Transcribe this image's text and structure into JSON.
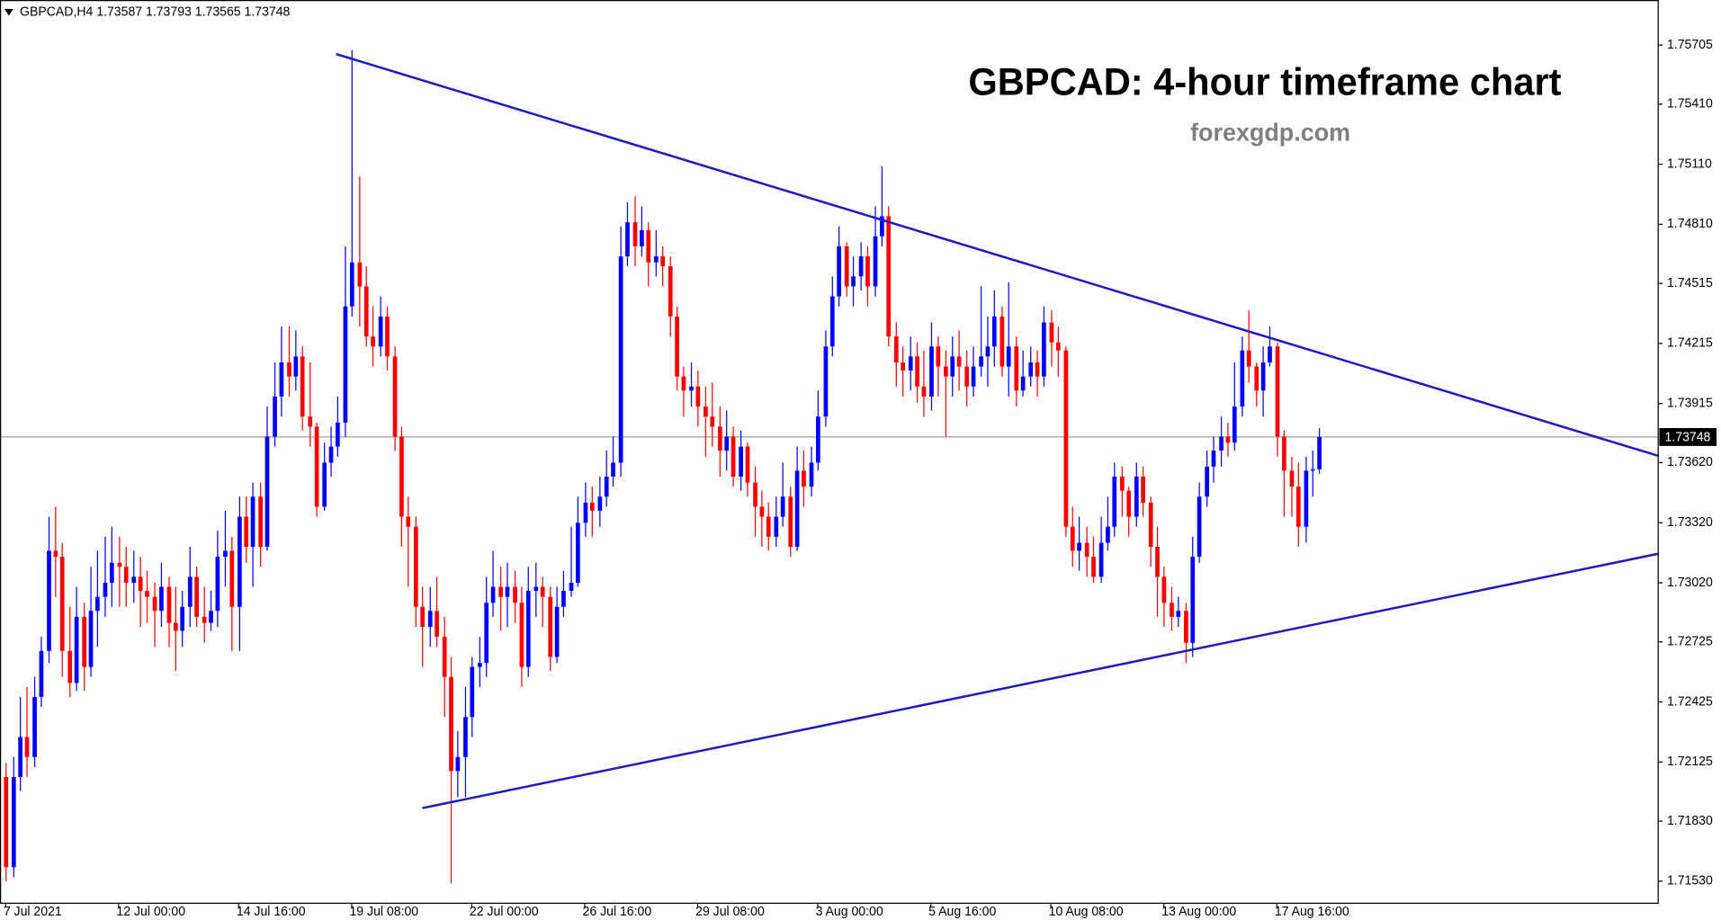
{
  "chart_data": {
    "type": "candlestick",
    "symbol": "GBPCAD,H4",
    "title": "GBPCAD: 4-hour timeframe chart",
    "subtitle": "forexgdp.com",
    "up_color": "#0000ff",
    "down_color": "#ff0000",
    "xlim": [
      -0.8,
      234.0
    ],
    "ylim": [
      1.7142,
      1.7593
    ],
    "xticks": [
      {
        "value": 0,
        "label": "7 Jul 2021"
      },
      {
        "value": 16,
        "label": "12 Jul 00:00"
      },
      {
        "value": 33,
        "label": "14 Jul 16:00"
      },
      {
        "value": 49,
        "label": "19 Jul 08:00"
      },
      {
        "value": 66,
        "label": "22 Jul 00:00"
      },
      {
        "value": 82,
        "label": "26 Jul 16:00"
      },
      {
        "value": 98,
        "label": "29 Jul 08:00"
      },
      {
        "value": 115,
        "label": "3 Aug 00:00"
      },
      {
        "value": 131,
        "label": "5 Aug 16:00"
      },
      {
        "value": 148,
        "label": "10 Aug 08:00"
      },
      {
        "value": 164,
        "label": "13 Aug 00:00"
      },
      {
        "value": 180,
        "label": "17 Aug 16:00"
      }
    ],
    "yticks": [
      1.75705,
      {
        "value": 1.7541,
        "label": "1.75410"
      },
      {
        "value": 1.7511,
        "label": "1.75110"
      },
      {
        "value": 1.7481,
        "label": "1.74810"
      },
      1.74515,
      1.74215,
      1.73915,
      {
        "value": 1.7362,
        "label": "1.73620"
      },
      {
        "value": 1.7332,
        "label": "1.73320"
      },
      {
        "value": 1.7302,
        "label": "1.73020"
      },
      1.72725,
      1.72425,
      1.72125,
      {
        "value": 1.7183,
        "label": "1.71830"
      },
      {
        "value": 1.7153,
        "label": "1.71530"
      }
    ],
    "trendlines": [
      {
        "x": [
          46.8,
          234.0
        ],
        "y": [
          1.7566,
          1.73654
        ],
        "color": "#1a1ac8"
      },
      {
        "x": [
          59.0,
          234.0
        ],
        "y": [
          1.71895,
          1.73165
        ],
        "color": "#1a1ac8"
      }
    ],
    "current_price_line_color": "#a0a0a0",
    "ohlc": [
      [
        1.7205,
        1.7212,
        1.7153,
        1.716
      ],
      [
        1.716,
        1.7215,
        1.7155,
        1.7205
      ],
      [
        1.7205,
        1.7245,
        1.7198,
        1.7225
      ],
      [
        1.7225,
        1.725,
        1.7205,
        1.7215
      ],
      [
        1.7215,
        1.7255,
        1.721,
        1.7245
      ],
      [
        1.7245,
        1.7275,
        1.724,
        1.7268
      ],
      [
        1.7268,
        1.7335,
        1.7262,
        1.7318
      ],
      [
        1.7318,
        1.734,
        1.7295,
        1.7315
      ],
      [
        1.7315,
        1.7322,
        1.7255,
        1.7268
      ],
      [
        1.7268,
        1.729,
        1.7245,
        1.7252
      ],
      [
        1.7252,
        1.73,
        1.7248,
        1.7285
      ],
      [
        1.7285,
        1.7292,
        1.7248,
        1.726
      ],
      [
        1.726,
        1.731,
        1.7255,
        1.7288
      ],
      [
        1.7288,
        1.7318,
        1.727,
        1.7295
      ],
      [
        1.7295,
        1.7325,
        1.7285,
        1.7302
      ],
      [
        1.7302,
        1.733,
        1.729,
        1.7312
      ],
      [
        1.7312,
        1.7325,
        1.729,
        1.731
      ],
      [
        1.731,
        1.732,
        1.729,
        1.7302
      ],
      [
        1.7302,
        1.7318,
        1.7292,
        1.7305
      ],
      [
        1.7305,
        1.7315,
        1.728,
        1.7298
      ],
      [
        1.7298,
        1.7308,
        1.7282,
        1.7295
      ],
      [
        1.7295,
        1.7302,
        1.727,
        1.7288
      ],
      [
        1.7288,
        1.7312,
        1.728,
        1.73
      ],
      [
        1.73,
        1.7305,
        1.727,
        1.7282
      ],
      [
        1.7282,
        1.73,
        1.7258,
        1.7278
      ],
      [
        1.7278,
        1.7298,
        1.727,
        1.729
      ],
      [
        1.729,
        1.732,
        1.728,
        1.7305
      ],
      [
        1.7305,
        1.731,
        1.728,
        1.7285
      ],
      [
        1.7285,
        1.73,
        1.7272,
        1.7282
      ],
      [
        1.7282,
        1.7298,
        1.7278,
        1.7288
      ],
      [
        1.7288,
        1.7328,
        1.728,
        1.7315
      ],
      [
        1.7315,
        1.7338,
        1.73,
        1.7318
      ],
      [
        1.7318,
        1.7325,
        1.7268,
        1.729
      ],
      [
        1.729,
        1.7345,
        1.7268,
        1.7335
      ],
      [
        1.7335,
        1.7345,
        1.7312,
        1.732
      ],
      [
        1.732,
        1.7352,
        1.73,
        1.7345
      ],
      [
        1.7345,
        1.7352,
        1.731,
        1.732
      ],
      [
        1.732,
        1.739,
        1.7318,
        1.7375
      ],
      [
        1.7375,
        1.7412,
        1.737,
        1.7395
      ],
      [
        1.7395,
        1.743,
        1.7385,
        1.7412
      ],
      [
        1.7412,
        1.743,
        1.7395,
        1.7405
      ],
      [
        1.7405,
        1.7428,
        1.7398,
        1.7415
      ],
      [
        1.7415,
        1.742,
        1.7378,
        1.7385
      ],
      [
        1.7385,
        1.7412,
        1.737,
        1.738
      ],
      [
        1.738,
        1.7382,
        1.7335,
        1.734
      ],
      [
        1.734,
        1.7372,
        1.7338,
        1.7362
      ],
      [
        1.7362,
        1.738,
        1.7355,
        1.737
      ],
      [
        1.737,
        1.7395,
        1.7365,
        1.7382
      ],
      [
        1.7382,
        1.747,
        1.7375,
        1.744
      ],
      [
        1.744,
        1.7568,
        1.7435,
        1.7462
      ],
      [
        1.7462,
        1.7505,
        1.743,
        1.745
      ],
      [
        1.745,
        1.746,
        1.742,
        1.7425
      ],
      [
        1.7425,
        1.744,
        1.741,
        1.742
      ],
      [
        1.742,
        1.7445,
        1.7415,
        1.7435
      ],
      [
        1.7435,
        1.744,
        1.7408,
        1.7415
      ],
      [
        1.7415,
        1.742,
        1.7368,
        1.7375
      ],
      [
        1.7375,
        1.738,
        1.732,
        1.7335
      ],
      [
        1.7335,
        1.7345,
        1.73,
        1.733
      ],
      [
        1.733,
        1.7335,
        1.728,
        1.729
      ],
      [
        1.729,
        1.73,
        1.726,
        1.728
      ],
      [
        1.728,
        1.73,
        1.727,
        1.7288
      ],
      [
        1.7288,
        1.7305,
        1.727,
        1.7275
      ],
      [
        1.7275,
        1.7285,
        1.7235,
        1.7255
      ],
      [
        1.7255,
        1.7265,
        1.7152,
        1.7208
      ],
      [
        1.7208,
        1.7228,
        1.7195,
        1.7215
      ],
      [
        1.7215,
        1.725,
        1.7195,
        1.7235
      ],
      [
        1.7235,
        1.7265,
        1.7225,
        1.726
      ],
      [
        1.726,
        1.7275,
        1.725,
        1.7262
      ],
      [
        1.7262,
        1.7305,
        1.7255,
        1.7292
      ],
      [
        1.7292,
        1.7318,
        1.7285,
        1.73
      ],
      [
        1.73,
        1.731,
        1.7278,
        1.7295
      ],
      [
        1.7295,
        1.7312,
        1.728,
        1.73
      ],
      [
        1.73,
        1.7308,
        1.7282,
        1.7292
      ],
      [
        1.7292,
        1.73,
        1.725,
        1.726
      ],
      [
        1.726,
        1.731,
        1.7255,
        1.7298
      ],
      [
        1.7298,
        1.7312,
        1.7285,
        1.73
      ],
      [
        1.73,
        1.7305,
        1.728,
        1.7295
      ],
      [
        1.7295,
        1.73,
        1.7258,
        1.7265
      ],
      [
        1.7265,
        1.73,
        1.7262,
        1.729
      ],
      [
        1.729,
        1.7308,
        1.7285,
        1.7298
      ],
      [
        1.7298,
        1.733,
        1.7295,
        1.7302
      ],
      [
        1.7302,
        1.7345,
        1.73,
        1.7332
      ],
      [
        1.7332,
        1.7352,
        1.7325,
        1.7342
      ],
      [
        1.7342,
        1.735,
        1.7325,
        1.7338
      ],
      [
        1.7338,
        1.7355,
        1.733,
        1.7345
      ],
      [
        1.7345,
        1.7368,
        1.734,
        1.7355
      ],
      [
        1.7355,
        1.7375,
        1.735,
        1.7362
      ],
      [
        1.7362,
        1.748,
        1.7355,
        1.7465
      ],
      [
        1.7465,
        1.7492,
        1.746,
        1.7482
      ],
      [
        1.7482,
        1.7495,
        1.746,
        1.747
      ],
      [
        1.747,
        1.749,
        1.7465,
        1.7478
      ],
      [
        1.7478,
        1.7482,
        1.745,
        1.7462
      ],
      [
        1.7462,
        1.7478,
        1.7455,
        1.7465
      ],
      [
        1.7465,
        1.747,
        1.745,
        1.746
      ],
      [
        1.746,
        1.7465,
        1.7425,
        1.7435
      ],
      [
        1.7435,
        1.744,
        1.7398,
        1.7405
      ],
      [
        1.7405,
        1.741,
        1.7385,
        1.7398
      ],
      [
        1.7398,
        1.7412,
        1.739,
        1.74
      ],
      [
        1.74,
        1.7408,
        1.738,
        1.739
      ],
      [
        1.739,
        1.74,
        1.7365,
        1.7385
      ],
      [
        1.7385,
        1.7402,
        1.737,
        1.738
      ],
      [
        1.738,
        1.739,
        1.7355,
        1.7368
      ],
      [
        1.7368,
        1.7388,
        1.7358,
        1.7375
      ],
      [
        1.7375,
        1.738,
        1.735,
        1.7355
      ],
      [
        1.7355,
        1.7378,
        1.7348,
        1.737
      ],
      [
        1.737,
        1.7372,
        1.7345,
        1.7352
      ],
      [
        1.7352,
        1.736,
        1.7325,
        1.734
      ],
      [
        1.734,
        1.7348,
        1.732,
        1.7335
      ],
      [
        1.7335,
        1.7342,
        1.7318,
        1.7325
      ],
      [
        1.7325,
        1.7345,
        1.732,
        1.7335
      ],
      [
        1.7335,
        1.7362,
        1.733,
        1.7345
      ],
      [
        1.7345,
        1.735,
        1.7315,
        1.732
      ],
      [
        1.732,
        1.737,
        1.7318,
        1.7358
      ],
      [
        1.7358,
        1.7368,
        1.734,
        1.735
      ],
      [
        1.735,
        1.737,
        1.7345,
        1.7362
      ],
      [
        1.7362,
        1.7398,
        1.7358,
        1.7385
      ],
      [
        1.7385,
        1.7428,
        1.738,
        1.742
      ],
      [
        1.742,
        1.7455,
        1.7415,
        1.7445
      ],
      [
        1.7445,
        1.748,
        1.744,
        1.747
      ],
      [
        1.747,
        1.7472,
        1.7445,
        1.745
      ],
      [
        1.745,
        1.7465,
        1.744,
        1.7455
      ],
      [
        1.7455,
        1.7472,
        1.7448,
        1.7465
      ],
      [
        1.7465,
        1.747,
        1.744,
        1.745
      ],
      [
        1.745,
        1.749,
        1.7445,
        1.7475
      ],
      [
        1.7475,
        1.751,
        1.747,
        1.7485
      ],
      [
        1.7485,
        1.749,
        1.742,
        1.7425
      ],
      [
        1.7425,
        1.7432,
        1.74,
        1.7412
      ],
      [
        1.7412,
        1.742,
        1.7395,
        1.7408
      ],
      [
        1.7408,
        1.7425,
        1.7398,
        1.7415
      ],
      [
        1.7415,
        1.7422,
        1.7392,
        1.74
      ],
      [
        1.74,
        1.7418,
        1.7385,
        1.7395
      ],
      [
        1.7395,
        1.7432,
        1.7388,
        1.742
      ],
      [
        1.742,
        1.7425,
        1.7395,
        1.741
      ],
      [
        1.741,
        1.7418,
        1.7375,
        1.7405
      ],
      [
        1.7405,
        1.7425,
        1.7395,
        1.7415
      ],
      [
        1.7415,
        1.7428,
        1.7398,
        1.741
      ],
      [
        1.741,
        1.7418,
        1.739,
        1.74
      ],
      [
        1.74,
        1.742,
        1.7395,
        1.741
      ],
      [
        1.741,
        1.745,
        1.7405,
        1.7415
      ],
      [
        1.7415,
        1.7435,
        1.74,
        1.742
      ],
      [
        1.742,
        1.7448,
        1.741,
        1.7435
      ],
      [
        1.7435,
        1.744,
        1.7405,
        1.741
      ],
      [
        1.741,
        1.7452,
        1.7395,
        1.742
      ],
      [
        1.742,
        1.7425,
        1.739,
        1.7398
      ],
      [
        1.7398,
        1.7418,
        1.7395,
        1.7405
      ],
      [
        1.7405,
        1.742,
        1.74,
        1.7412
      ],
      [
        1.7412,
        1.7418,
        1.7395,
        1.7405
      ],
      [
        1.7405,
        1.744,
        1.74,
        1.7432
      ],
      [
        1.7432,
        1.7438,
        1.741,
        1.7422
      ],
      [
        1.7422,
        1.743,
        1.7405,
        1.7418
      ],
      [
        1.7418,
        1.742,
        1.7325,
        1.733
      ],
      [
        1.733,
        1.734,
        1.731,
        1.7318
      ],
      [
        1.7318,
        1.7335,
        1.7308,
        1.7322
      ],
      [
        1.7322,
        1.733,
        1.7305,
        1.7315
      ],
      [
        1.7315,
        1.7325,
        1.7302,
        1.7305
      ],
      [
        1.7305,
        1.7335,
        1.7302,
        1.7322
      ],
      [
        1.7322,
        1.7345,
        1.7318,
        1.733
      ],
      [
        1.733,
        1.7362,
        1.7325,
        1.7355
      ],
      [
        1.7355,
        1.736,
        1.7335,
        1.7348
      ],
      [
        1.7348,
        1.735,
        1.7325,
        1.7335
      ],
      [
        1.7335,
        1.7362,
        1.733,
        1.7355
      ],
      [
        1.7355,
        1.736,
        1.7335,
        1.7342
      ],
      [
        1.7342,
        1.7345,
        1.731,
        1.732
      ],
      [
        1.732,
        1.733,
        1.7285,
        1.7305
      ],
      [
        1.7305,
        1.731,
        1.728,
        1.7292
      ],
      [
        1.7292,
        1.73,
        1.7278,
        1.7285
      ],
      [
        1.7285,
        1.7295,
        1.728,
        1.7288
      ],
      [
        1.7288,
        1.7292,
        1.7262,
        1.7272
      ],
      [
        1.7272,
        1.7325,
        1.7265,
        1.7315
      ],
      [
        1.7315,
        1.7352,
        1.7312,
        1.7345
      ],
      [
        1.7345,
        1.7368,
        1.734,
        1.736
      ],
      [
        1.736,
        1.7375,
        1.7352,
        1.7368
      ],
      [
        1.7368,
        1.7385,
        1.736,
        1.7375
      ],
      [
        1.7375,
        1.7382,
        1.7365,
        1.7372
      ],
      [
        1.7372,
        1.7412,
        1.7368,
        1.739
      ],
      [
        1.739,
        1.7425,
        1.7385,
        1.7418
      ],
      [
        1.7418,
        1.7438,
        1.7402,
        1.741
      ],
      [
        1.741,
        1.7412,
        1.739,
        1.7398
      ],
      [
        1.7398,
        1.742,
        1.7385,
        1.7412
      ],
      [
        1.7412,
        1.743,
        1.741,
        1.742
      ],
      [
        1.742,
        1.7422,
        1.7365,
        1.7375
      ],
      [
        1.7375,
        1.7378,
        1.7335,
        1.7358
      ],
      [
        1.7358,
        1.7365,
        1.7335,
        1.735
      ],
      [
        1.735,
        1.7362,
        1.732,
        1.733
      ],
      [
        1.733,
        1.7365,
        1.7322,
        1.7358
      ],
      [
        1.7358,
        1.7368,
        1.7345,
        1.73587
      ],
      [
        1.73587,
        1.73793,
        1.73565,
        1.73748
      ]
    ]
  }
}
